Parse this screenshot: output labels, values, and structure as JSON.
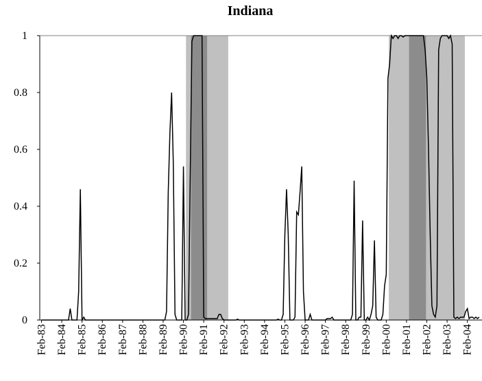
{
  "chart_data": {
    "type": "line",
    "title": "Indiana",
    "color": "#000000",
    "categories": [
      "Feb-83",
      null,
      null,
      null,
      null,
      null,
      null,
      null,
      null,
      null,
      null,
      null,
      "Feb-84",
      null,
      null,
      null,
      null,
      null,
      null,
      null,
      null,
      null,
      null,
      null,
      "Feb-85",
      null,
      null,
      null,
      null,
      null,
      null,
      null,
      null,
      null,
      null,
      null,
      "Feb-86",
      null,
      null,
      null,
      null,
      null,
      null,
      null,
      null,
      null,
      null,
      null,
      "Feb-87",
      null,
      null,
      null,
      null,
      null,
      null,
      null,
      null,
      null,
      null,
      null,
      "Feb-88",
      null,
      null,
      null,
      null,
      null,
      null,
      null,
      null,
      null,
      null,
      null,
      "Feb-89",
      null,
      null,
      null,
      null,
      null,
      null,
      null,
      null,
      null,
      null,
      null,
      "Feb-90",
      null,
      null,
      null,
      null,
      null,
      null,
      null,
      null,
      null,
      null,
      null,
      "Feb-91",
      null,
      null,
      null,
      null,
      null,
      null,
      null,
      null,
      null,
      null,
      null,
      "Feb-92",
      null,
      null,
      null,
      null,
      null,
      null,
      null,
      null,
      null,
      null,
      null,
      "Feb-93",
      null,
      null,
      null,
      null,
      null,
      null,
      null,
      null,
      null,
      null,
      null,
      "Feb-94",
      null,
      null,
      null,
      null,
      null,
      null,
      null,
      null,
      null,
      null,
      null,
      "Feb-95",
      null,
      null,
      null,
      null,
      null,
      null,
      null,
      null,
      null,
      null,
      null,
      "Feb-96",
      null,
      null,
      null,
      null,
      null,
      null,
      null,
      null,
      null,
      null,
      null,
      "Feb-97",
      null,
      null,
      null,
      null,
      null,
      null,
      null,
      null,
      null,
      null,
      null,
      "Feb-98",
      null,
      null,
      null,
      null,
      null,
      null,
      null,
      null,
      null,
      null,
      null,
      "Feb-99",
      null,
      null,
      null,
      null,
      null,
      null,
      null,
      null,
      null,
      null,
      null,
      "Feb-00",
      null,
      null,
      null,
      null,
      null,
      null,
      null,
      null,
      null,
      null,
      null,
      "Feb-01",
      null,
      null,
      null,
      null,
      null,
      null,
      null,
      null,
      null,
      null,
      null,
      "Feb-02",
      null,
      null,
      null,
      null,
      null,
      null,
      null,
      null,
      null,
      null,
      null,
      "Feb-03",
      null,
      null,
      null,
      null,
      null,
      null,
      null,
      null,
      null,
      null,
      null,
      "Feb-04",
      null,
      null,
      null,
      null,
      null,
      null,
      null
    ],
    "values": [
      0,
      0,
      0,
      0,
      0,
      0,
      0,
      0,
      0,
      0,
      0,
      0,
      0,
      0,
      0,
      0,
      0,
      0.04,
      0,
      0,
      0,
      0,
      0.1,
      0.46,
      0,
      0.01,
      0,
      0,
      0,
      0,
      0,
      0,
      0,
      0,
      0,
      0,
      0,
      0,
      0,
      0,
      0,
      0,
      0,
      0,
      0,
      0,
      0,
      0,
      0,
      0,
      0,
      0,
      0,
      0,
      0,
      0,
      0,
      0,
      0,
      0,
      0,
      0,
      0,
      0,
      0,
      0,
      0,
      0,
      0,
      0,
      0,
      0,
      0,
      0,
      0.03,
      0.45,
      0.66,
      0.8,
      0.55,
      0.02,
      0,
      0,
      0,
      0,
      0.54,
      0,
      0,
      0.02,
      0.5,
      0.98,
      1,
      1,
      1,
      1,
      1,
      1,
      0.01,
      0.005,
      0.005,
      0.005,
      0.005,
      0.005,
      0.005,
      0.005,
      0.005,
      0.02,
      0.02,
      0.005,
      0,
      0,
      0,
      0,
      0,
      0,
      0,
      0,
      0.003,
      0,
      0,
      0,
      0,
      0,
      0,
      0,
      0,
      0,
      0,
      0,
      0,
      0,
      0,
      0,
      0,
      0,
      0,
      0,
      0,
      0,
      0,
      0,
      0.003,
      0,
      0,
      0.02,
      0.3,
      0.46,
      0.3,
      0,
      0,
      0,
      0.01,
      0.38,
      0.37,
      0.45,
      0.54,
      0.1,
      0,
      0,
      0,
      0.02,
      0,
      0,
      0,
      0,
      0,
      0,
      0,
      0,
      0,
      0.005,
      0.005,
      0.005,
      0.01,
      0,
      0,
      0,
      0,
      0,
      0,
      0,
      0,
      0,
      0,
      0,
      0.02,
      0.49,
      0,
      0,
      0.01,
      0.01,
      0.35,
      0,
      0,
      0.01,
      0,
      0.02,
      0.05,
      0.28,
      0.01,
      0,
      0,
      0,
      0.02,
      0.12,
      0.16,
      0.85,
      0.9,
      1,
      0.99,
      1,
      1,
      0.99,
      1,
      1,
      0.995,
      1,
      1,
      1,
      1,
      1,
      1,
      1,
      1,
      1,
      1,
      1,
      1,
      0.95,
      0.85,
      0.6,
      0.3,
      0.05,
      0.02,
      0.01,
      0.05,
      0.95,
      0.99,
      1,
      1,
      1,
      1,
      0.99,
      1,
      0.97,
      0.01,
      0.005,
      0.01,
      0.005,
      0.01,
      0.01,
      0.01,
      0.03,
      0.04,
      0.005,
      0.01,
      0.01,
      0.005,
      0.01,
      0.005,
      0.01
    ],
    "ylim": [
      0,
      1
    ],
    "yticks": [
      0,
      0.2,
      0.4,
      0.6,
      0.8,
      1
    ],
    "shading": [
      {
        "x0": 85.5,
        "x1": 110.5,
        "color": "#c0c0c0"
      },
      {
        "x0": 88.5,
        "x1": 98,
        "color": "#8c8c8c"
      },
      {
        "x0": 205.5,
        "x1": 250.5,
        "color": "#c0c0c0"
      },
      {
        "x0": 217.5,
        "x1": 227.5,
        "color": "#8c8c8c"
      }
    ]
  }
}
